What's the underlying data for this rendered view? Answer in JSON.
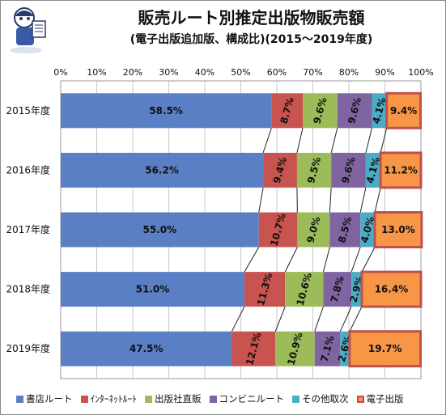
{
  "chart_data": {
    "type": "bar",
    "orientation": "horizontal",
    "stacked": "percent",
    "title": "販売ルート別推定出版物販売額",
    "subtitle": "(電子出版追加版、構成比)(2015～2019年度)",
    "categories": [
      "2015年度",
      "2016年度",
      "2017年度",
      "2018年度",
      "2019年度"
    ],
    "x_ticks": [
      "0%",
      "10%",
      "20%",
      "30%",
      "40%",
      "50%",
      "60%",
      "70%",
      "80%",
      "90%",
      "100%"
    ],
    "xlim": [
      0,
      100
    ],
    "grid": true,
    "legend_position": "bottom",
    "series": [
      {
        "name": "書店ルート",
        "color": "#5b7fc4",
        "values": [
          58.5,
          56.2,
          55.0,
          51.0,
          47.5
        ],
        "labels": [
          "58.5%",
          "56.2%",
          "55.0%",
          "51.0%",
          "47.5%"
        ],
        "rotated": false
      },
      {
        "name": "ｲﾝﾀｰﾈｯﾄﾙｰﾄ",
        "color": "#c9534f",
        "values": [
          8.7,
          9.4,
          10.7,
          11.3,
          12.1
        ],
        "labels": [
          "8.7%",
          "9.4%",
          "10.7%",
          "11.3%",
          "12.1%"
        ],
        "rotated": true
      },
      {
        "name": "出版社直販",
        "color": "#9cbc59",
        "values": [
          9.6,
          9.5,
          9.0,
          10.6,
          10.9
        ],
        "labels": [
          "9.6%",
          "9.5%",
          "9.0%",
          "10.6%",
          "10.9%"
        ],
        "rotated": true
      },
      {
        "name": "コンビニルート",
        "color": "#8064a2",
        "values": [
          9.6,
          9.6,
          8.5,
          7.8,
          7.1
        ],
        "labels": [
          "9.6%",
          "9.6%",
          "8.5%",
          "7.8%",
          "7.1%"
        ],
        "rotated": true
      },
      {
        "name": "その他取次",
        "color": "#4bacc6",
        "values": [
          4.1,
          4.1,
          4.0,
          2.9,
          2.6
        ],
        "labels": [
          "4.1%",
          "4.1%",
          "4.0%",
          "2.9%",
          "2.6%"
        ],
        "rotated": true
      },
      {
        "name": "電子出版",
        "color": "#f79646",
        "border": "#c0504d",
        "values": [
          9.4,
          11.2,
          13.0,
          16.4,
          19.7
        ],
        "labels": [
          "9.4%",
          "11.2%",
          "13.0%",
          "16.4%",
          "19.7%"
        ],
        "rotated": false
      }
    ]
  }
}
